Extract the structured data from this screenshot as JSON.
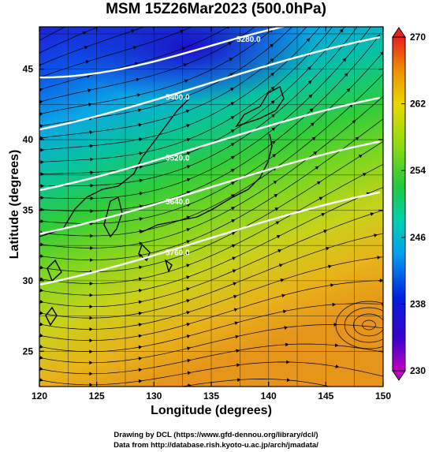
{
  "title": "MSM 15Z26Mar2023 (500.0hPa)",
  "x_axis": {
    "label": "Longitude (degrees)",
    "ticks": [
      "120",
      "125",
      "130",
      "135",
      "140",
      "145",
      "150"
    ],
    "range": [
      120,
      150
    ]
  },
  "y_axis": {
    "label": "Latitude  (degrees)",
    "ticks": [
      "25",
      "30",
      "35",
      "40",
      "45"
    ],
    "range": [
      22.5,
      48
    ]
  },
  "colorbar": {
    "ticks": [
      "230",
      "238",
      "246",
      "254",
      "262",
      "270"
    ],
    "range": [
      230,
      270
    ],
    "extend": "both"
  },
  "contours": [
    {
      "label": "5280.0",
      "lat": 46.6
    },
    {
      "label": "5400.0",
      "lat": 41.5
    },
    {
      "label": "5520.0",
      "lat": 37.2
    },
    {
      "label": "5640.0",
      "lat": 34.1
    },
    {
      "label": "5760.0",
      "lat": 30.5
    }
  ],
  "credits": {
    "line1": "Drawing by DCL (https://www.gfd-dennou.org/library/dcl/)",
    "line2": "Data from http://database.rish.kyoto-u.ac.jp/arch/jmadata/"
  }
}
